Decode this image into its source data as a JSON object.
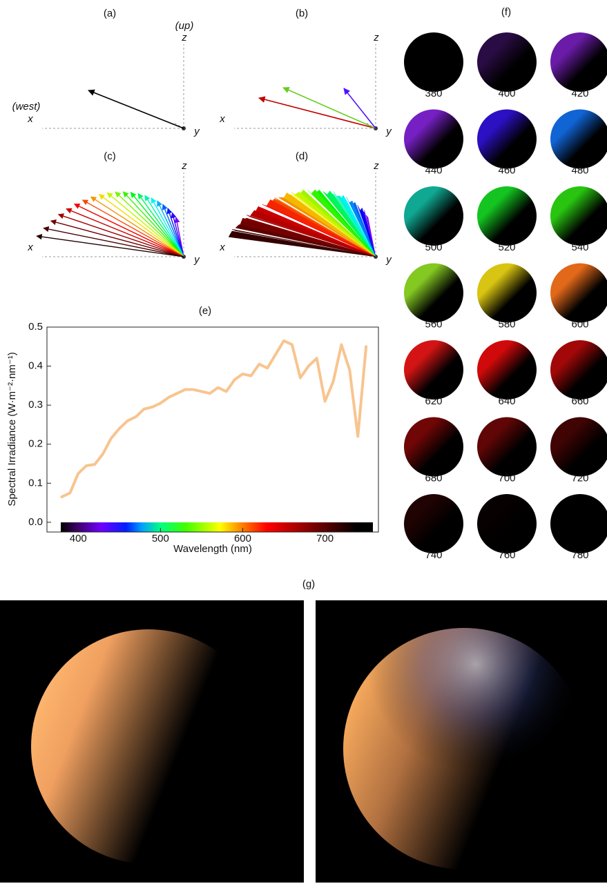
{
  "panels": [
    {
      "label": "(a)",
      "z_note": "(up)",
      "z": "z",
      "x_note": "(west)",
      "x": "x",
      "y": "y"
    },
    {
      "label": "(b)",
      "z": "z",
      "x": "x",
      "y": "y"
    },
    {
      "label": "(c)",
      "z": "z",
      "x": "x",
      "y": "y"
    },
    {
      "label": "(d)",
      "z": "z",
      "x": "x",
      "y": "y"
    }
  ],
  "chart_data": {
    "type": "line",
    "label": "(e)",
    "x_label": "Wavelength (nm)",
    "y_label": "Spectral Irradiance (W·m⁻²·nm⁻¹)",
    "x": [
      380,
      390,
      400,
      410,
      420,
      430,
      440,
      450,
      460,
      470,
      480,
      490,
      500,
      510,
      520,
      530,
      540,
      550,
      560,
      570,
      580,
      590,
      600,
      610,
      620,
      630,
      640,
      650,
      660,
      670,
      680,
      690,
      700,
      710,
      720,
      730,
      740,
      750
    ],
    "series": [
      {
        "color": "#f8c48f",
        "values": [
          0.065,
          0.075,
          0.125,
          0.145,
          0.148,
          0.175,
          0.215,
          0.24,
          0.26,
          0.27,
          0.29,
          0.295,
          0.305,
          0.32,
          0.33,
          0.34,
          0.34,
          0.335,
          0.33,
          0.345,
          0.335,
          0.365,
          0.38,
          0.375,
          0.405,
          0.395,
          0.43,
          0.465,
          0.455,
          0.37,
          0.4,
          0.42,
          0.31,
          0.36,
          0.455,
          0.39,
          0.22,
          0.45
        ]
      }
    ],
    "xlim": [
      362,
      765
    ],
    "xticks": [
      400,
      500,
      600,
      700
    ],
    "ylim": [
      -0.025,
      0.5
    ],
    "yticks": [
      {
        "value": 0,
        "label": "0.0"
      },
      0.1,
      0.2,
      0.3,
      0.4,
      0.5
    ]
  },
  "spheres": {
    "label": "(f)",
    "wavelengths": [
      380,
      400,
      420,
      440,
      460,
      480,
      500,
      520,
      540,
      560,
      580,
      600,
      620,
      640,
      660,
      680,
      700,
      720,
      740,
      760,
      780
    ],
    "colors": [
      "#000000",
      "#2a0c44",
      "#6a1ca8",
      "#7620c4",
      "#2c10c4",
      "#1064d4",
      "#10a892",
      "#14c420",
      "#28c410",
      "#84c822",
      "#d8c412",
      "#e2681a",
      "#d41414",
      "#d00a0a",
      "#a20808",
      "#700606",
      "#600606",
      "#400404",
      "#200303",
      "#080101",
      "#000000"
    ]
  },
  "renders": {
    "label": "(g)"
  }
}
